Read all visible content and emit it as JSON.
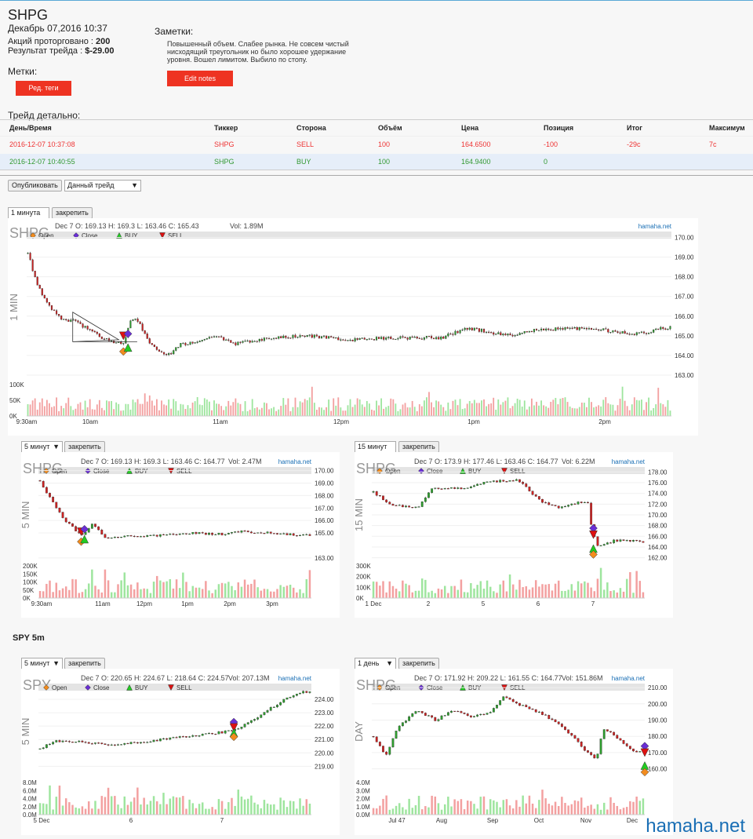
{
  "header": {
    "ticker": "SHPG",
    "date": "Декабрь 07,2016 10:37",
    "shares_label": "Акций проторговано :",
    "shares_value": "200",
    "result_label": "Результат трейда :",
    "result_value": "$-29.00"
  },
  "tags": {
    "label": "Метки:",
    "button": "Ред. теги"
  },
  "notes": {
    "label": "Заметки:",
    "text": "Повышенный объем. Слабее рынка. Не совсем чистый нисходящий треугольник но было хорошее удержание уровня. Вошел лимитом. Выбило по стопу.",
    "button": "Edit notes"
  },
  "trade": {
    "label": "Трейд детально:",
    "columns": [
      "День/Время",
      "Тиккер",
      "Сторона",
      "Объём",
      "Цена",
      "Позиция",
      "Итог",
      "Максимум"
    ],
    "rows": [
      [
        "2016-12-07 10:37:08",
        "SHPG",
        "SELL",
        "100",
        "164.6500",
        "-100",
        "-29c",
        "7c"
      ],
      [
        "2016-12-07 10:40:55",
        "SHPG",
        "BUY",
        "100",
        "164.9400",
        "0",
        "",
        ""
      ]
    ]
  },
  "publish": {
    "button": "Опубликовать",
    "select": "Данный трейд"
  },
  "legend": {
    "open": "Open",
    "close": "Close",
    "buy": "BUY",
    "sell": "SELL"
  },
  "pin_label": "закрепить",
  "site": "hamaha.net",
  "spy_label": "SPY 5m",
  "watermark": "hamaha.net",
  "colors": {
    "up": "#2e9e2e",
    "down": "#c22",
    "vol_up": "#9ee59e",
    "vol_down": "#f3a0a0",
    "buy_marker": "#22cc22",
    "sell_marker": "#dd1111",
    "open_marker": "#f28c1e",
    "close_marker": "#6a2fd4",
    "button": "#ee3322"
  },
  "chart_data": [
    {
      "id": "c1",
      "type": "candlestick",
      "timeframe": "1 минута",
      "symbol": "SHPG",
      "side_label": "1 MIN",
      "info": "Dec 7 O: 169.13 H: 169.3 L: 163.46 C: 165.43",
      "vol_info": "Vol: 1.89M",
      "ylim": [
        162.8,
        170.1
      ],
      "yticks": [
        "170.00",
        "169.00",
        "168.00",
        "167.00",
        "166.00",
        "165.00",
        "164.00",
        "163.00"
      ],
      "vol_ticks": [
        "100K",
        "50K",
        "0K"
      ],
      "vol_max": 120,
      "xticks": [
        "9:30am",
        "10am",
        "11am",
        "12pm",
        "1pm",
        "2pm"
      ],
      "path": [
        [
          0,
          169.2
        ],
        [
          4,
          167.6
        ],
        [
          10,
          166.4
        ],
        [
          15,
          165.8
        ],
        [
          19,
          165.8
        ],
        [
          25,
          165.4
        ],
        [
          32,
          164.9
        ],
        [
          38,
          164.6
        ],
        [
          42,
          164.7
        ],
        [
          45,
          165.9
        ],
        [
          48,
          165.7
        ],
        [
          52,
          164.8
        ],
        [
          57,
          164.2
        ],
        [
          62,
          164.0
        ],
        [
          65,
          164.5
        ],
        [
          72,
          164.7
        ],
        [
          80,
          165.0
        ],
        [
          90,
          164.6
        ],
        [
          100,
          164.8
        ],
        [
          110,
          164.9
        ],
        [
          120,
          165.0
        ],
        [
          140,
          164.8
        ],
        [
          160,
          164.9
        ],
        [
          180,
          164.9
        ],
        [
          190,
          165.4
        ],
        [
          210,
          165.0
        ],
        [
          220,
          165.3
        ],
        [
          240,
          165.4
        ],
        [
          250,
          165.3
        ],
        [
          262,
          165.1
        ],
        [
          270,
          165.2
        ],
        [
          275,
          165.4
        ],
        [
          280,
          165.4
        ]
      ],
      "markers": [
        {
          "type": "sell",
          "x": 42,
          "y": 165.0
        },
        {
          "type": "close",
          "x": 44,
          "y": 165.1
        },
        {
          "type": "open",
          "x": 42,
          "y": 164.2
        },
        {
          "type": "buy",
          "x": 44,
          "y": 164.4
        }
      ],
      "triangle": [
        [
          20,
          166.2
        ],
        [
          40,
          164.8
        ],
        [
          20,
          164.7
        ]
      ]
    },
    {
      "id": "c2",
      "type": "candlestick",
      "timeframe": "5 минут",
      "symbol": "SHPG",
      "side_label": "5 MIN",
      "info": "Dec 7 O: 169.13 H: 169.3 L: 163.46 C: 164.77",
      "vol_info": "Vol: 2.47M",
      "ylim": [
        162.8,
        170.1
      ],
      "yticks": [
        "170.00",
        "169.00",
        "168.00",
        "167.00",
        "166.00",
        "165.00",
        "163.00"
      ],
      "vol_ticks": [
        "200K",
        "150K",
        "100K",
        "50K",
        "0K"
      ],
      "vol_max": 230,
      "xticks": [
        "9:30am",
        "11am",
        "12pm",
        "1pm",
        "2pm",
        "3pm"
      ],
      "path": [
        [
          0,
          169.2
        ],
        [
          3,
          167.8
        ],
        [
          7,
          166.2
        ],
        [
          10,
          165.4
        ],
        [
          13,
          164.8
        ],
        [
          16,
          165.8
        ],
        [
          20,
          164.5
        ],
        [
          25,
          164.7
        ],
        [
          35,
          164.8
        ],
        [
          45,
          165.0
        ],
        [
          55,
          164.9
        ],
        [
          60,
          165.1
        ],
        [
          70,
          165.0
        ],
        [
          80,
          164.8
        ],
        [
          83,
          164.8
        ]
      ],
      "markers": [
        {
          "type": "sell",
          "x": 13,
          "y": 165.1
        },
        {
          "type": "close",
          "x": 14,
          "y": 165.3
        },
        {
          "type": "open",
          "x": 13,
          "y": 164.3
        },
        {
          "type": "buy",
          "x": 14,
          "y": 164.5
        }
      ]
    },
    {
      "id": "c3",
      "type": "candlestick",
      "timeframe": "15 минут",
      "symbol": "SHPG",
      "side_label": "15 MIN",
      "info": "Dec 7 O: 173.9 H: 177.46 L: 163.46 C: 164.77",
      "vol_info": "Vol: 6.22M",
      "ylim": [
        161.5,
        178.5
      ],
      "yticks": [
        "178.00",
        "176.00",
        "174.00",
        "172.00",
        "170.00",
        "168.00",
        "166.00",
        "164.00",
        "162.00"
      ],
      "vol_ticks": [
        "300K",
        "200K",
        "100K",
        "0K"
      ],
      "vol_max": 330,
      "xticks": [
        "1 Dec",
        "2",
        "5",
        "6",
        "7"
      ],
      "path": [
        [
          0,
          174.2
        ],
        [
          6,
          171.8
        ],
        [
          14,
          171.4
        ],
        [
          18,
          174.8
        ],
        [
          28,
          175.0
        ],
        [
          36,
          176.2
        ],
        [
          45,
          176.6
        ],
        [
          52,
          172.5
        ],
        [
          58,
          171.4
        ],
        [
          65,
          172.4
        ],
        [
          67,
          172.3
        ],
        [
          68,
          167.0
        ],
        [
          70,
          164.0
        ],
        [
          75,
          165.2
        ],
        [
          85,
          165.0
        ]
      ],
      "markers": [
        {
          "type": "close",
          "x": 69,
          "y": 167.5
        },
        {
          "type": "sell",
          "x": 69,
          "y": 166.3
        },
        {
          "type": "buy",
          "x": 69,
          "y": 163.7
        },
        {
          "type": "open",
          "x": 69,
          "y": 162.6
        }
      ]
    },
    {
      "id": "c4",
      "type": "candlestick",
      "timeframe": "5 минут",
      "symbol": "SPY",
      "side_label": "5 MIN",
      "info": "Dec 7 O: 220.65 H: 224.67 L: 218.64 C: 224.57",
      "vol_info": "Vol: 207.13M",
      "ylim": [
        218.2,
        225.0
      ],
      "yticks": [
        "224.00",
        "223.00",
        "222.00",
        "221.00",
        "220.00",
        "219.00"
      ],
      "vol_ticks": [
        "8.0M",
        "6.0M",
        "4.0M",
        "2.0M",
        "0.0M"
      ],
      "vol_max": 9,
      "xticks": [
        "5 Dec",
        "6",
        "7"
      ],
      "path": [
        [
          0,
          220.3
        ],
        [
          5,
          220.9
        ],
        [
          15,
          220.8
        ],
        [
          25,
          220.6
        ],
        [
          35,
          220.8
        ],
        [
          45,
          221.1
        ],
        [
          55,
          221.3
        ],
        [
          65,
          221.6
        ],
        [
          70,
          221.9
        ],
        [
          78,
          223.0
        ],
        [
          85,
          224.0
        ],
        [
          92,
          224.6
        ],
        [
          95,
          224.5
        ]
      ],
      "markers": [
        {
          "type": "close",
          "x": 68,
          "y": 222.3
        },
        {
          "type": "sell",
          "x": 68,
          "y": 221.9
        },
        {
          "type": "buy",
          "x": 68,
          "y": 221.5
        },
        {
          "type": "open",
          "x": 68,
          "y": 221.2
        }
      ]
    },
    {
      "id": "c5",
      "type": "candlestick",
      "timeframe": "1 день",
      "symbol": "SHPG",
      "side_label": "DAY",
      "info": "Dec 7 O: 171.92 H: 209.22 L: 161.55 C: 164.77",
      "vol_info": "Vol: 151.86M",
      "ylim": [
        155,
        211
      ],
      "yticks": [
        "210.00",
        "200.00",
        "190.00",
        "180.00",
        "170.00",
        "160.00"
      ],
      "vol_ticks": [
        "4.0M",
        "3.0M",
        "2.0M",
        "1.0M",
        "0.0M"
      ],
      "vol_max": 4.4,
      "xticks": [
        "Jul 47",
        "Aug",
        "Sep",
        "Oct",
        "Nov",
        "Dec"
      ],
      "path": [
        [
          0,
          180
        ],
        [
          4,
          168
        ],
        [
          8,
          186
        ],
        [
          14,
          196
        ],
        [
          20,
          190
        ],
        [
          26,
          196
        ],
        [
          32,
          192
        ],
        [
          38,
          195
        ],
        [
          42,
          205
        ],
        [
          46,
          200
        ],
        [
          52,
          196
        ],
        [
          58,
          190
        ],
        [
          64,
          180
        ],
        [
          68,
          172
        ],
        [
          72,
          166
        ],
        [
          74,
          185
        ],
        [
          78,
          180
        ],
        [
          82,
          174
        ],
        [
          85,
          170
        ],
        [
          88,
          172
        ]
      ],
      "markers": [
        {
          "type": "close",
          "x": 88,
          "y": 174
        },
        {
          "type": "sell",
          "x": 88,
          "y": 170
        },
        {
          "type": "buy",
          "x": 88,
          "y": 162
        },
        {
          "type": "open",
          "x": 88,
          "y": 158
        }
      ]
    }
  ]
}
